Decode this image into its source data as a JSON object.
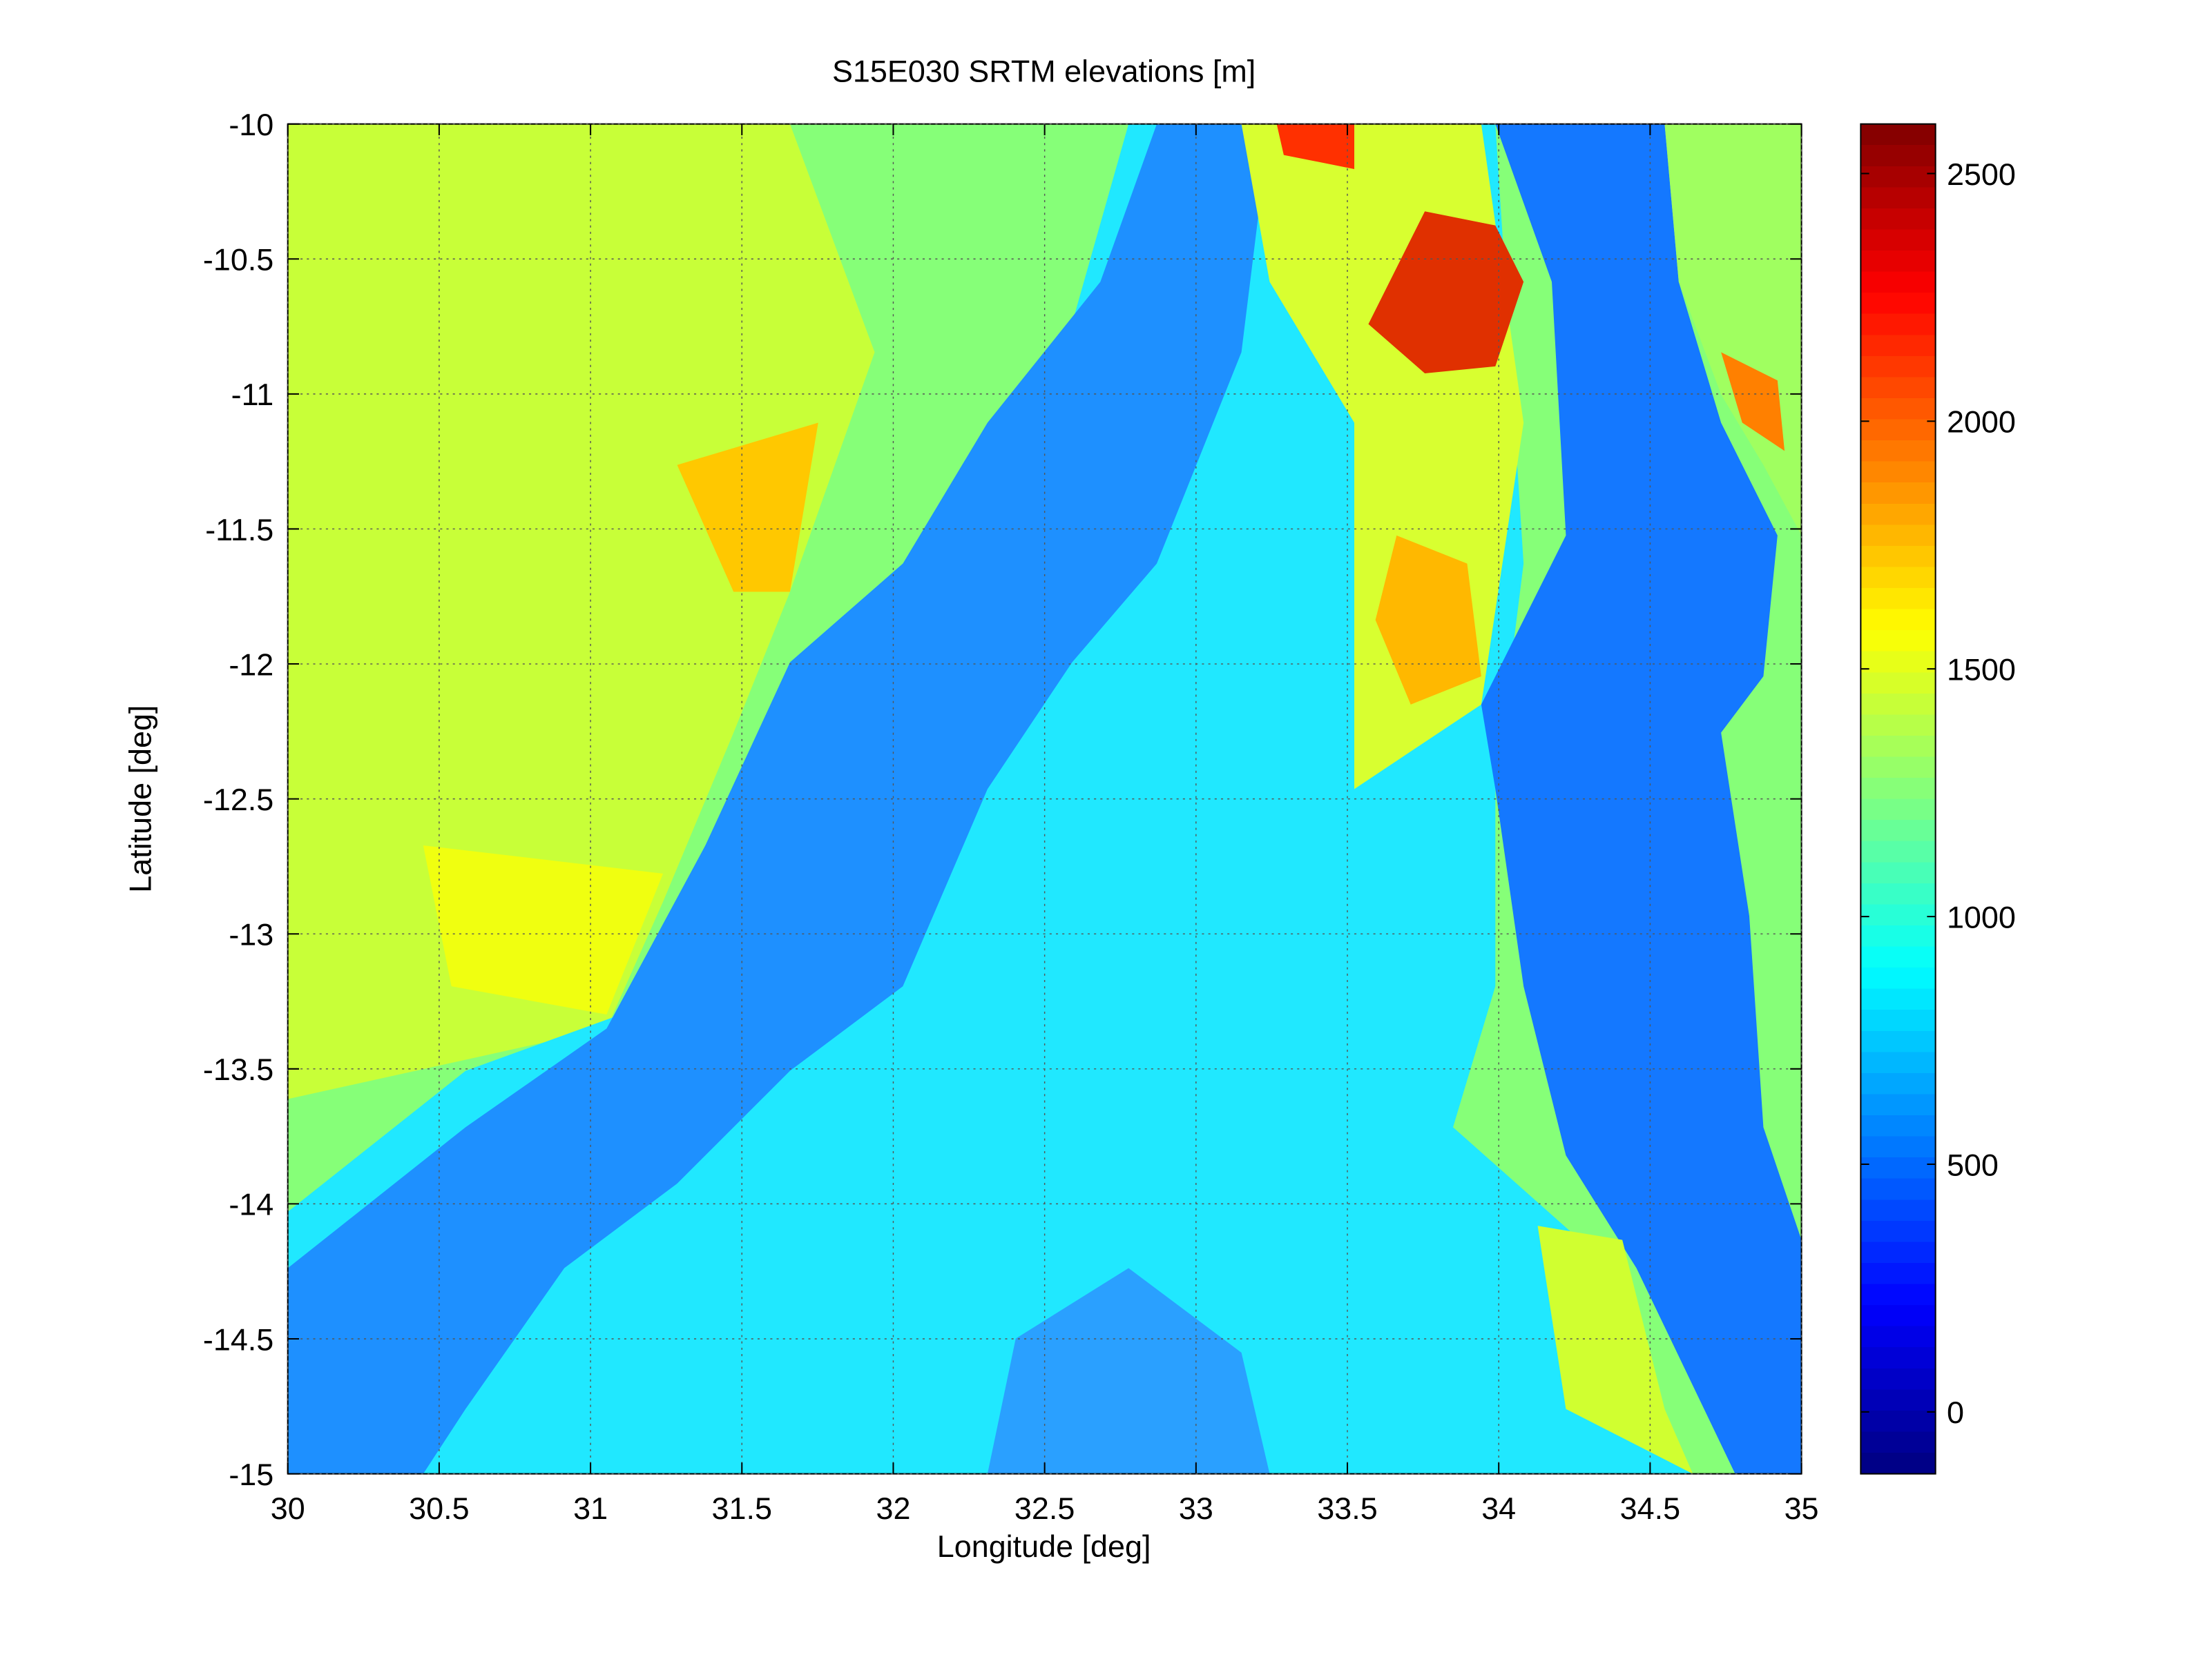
{
  "chart_data": {
    "type": "heatmap",
    "title": "S15E030 SRTM elevations [m]",
    "x_label": "Longitude [deg]",
    "y_label": "Latitude [deg]",
    "xlim": [
      30,
      35
    ],
    "xticks": [
      30,
      30.5,
      31,
      31.5,
      32,
      32.5,
      33,
      33.5,
      34,
      34.5,
      35
    ],
    "ylim": [
      -15,
      -10
    ],
    "yticks": [
      -15,
      -14.5,
      -14,
      -13.5,
      -13,
      -12.5,
      -12,
      -11.5,
      -11,
      -10.5,
      -10
    ],
    "grid": true,
    "colorbar": {
      "lim": [
        -125,
        2600
      ],
      "ticks": [
        0,
        500,
        1000,
        1500,
        2000,
        2500
      ],
      "colormap": "jet"
    }
  }
}
